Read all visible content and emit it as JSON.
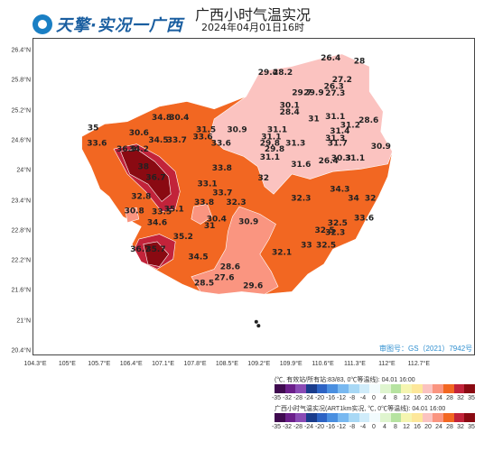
{
  "header": {
    "logo_text": "天擎·实况一广西",
    "title": "广西小时气温实况",
    "subtitle": "2024年04月01日16时"
  },
  "map": {
    "approval_number": "审图号：GS（2021）7942号",
    "lat_labels": [
      "26.4°N",
      "25.8°N",
      "25.2°N",
      "24.6°N",
      "24°N",
      "23.4°N",
      "22.8°N",
      "22.2°N",
      "21.6°N",
      "21°N",
      "20.4°N"
    ],
    "lon_labels": [
      "104.3°E",
      "105°E",
      "105.7°E",
      "106.4°E",
      "107.1°E",
      "107.8°E",
      "108.5°E",
      "109.2°E",
      "109.9°E",
      "110.6°E",
      "111.3°E",
      "112°E",
      "112.7°E"
    ],
    "colors": {
      "extreme_hot": "#8a0a12",
      "very_hot": "#c2233a",
      "hot": "#f26722",
      "warm": "#fa9580",
      "mild": "#fbc3c0",
      "border": "#ffffff",
      "water_marker": "#222222"
    },
    "station_values": [
      {
        "value": "35",
        "lon": 105.55,
        "lat": 24.82,
        "zone": "hot"
      },
      {
        "value": "33.6",
        "lon": 105.63,
        "lat": 24.52,
        "zone": "hot"
      },
      {
        "value": "30.6",
        "lon": 106.55,
        "lat": 24.72,
        "zone": "hot"
      },
      {
        "value": "34.8",
        "lon": 107.05,
        "lat": 25.03,
        "zone": "hot"
      },
      {
        "value": "30.4",
        "lon": 107.43,
        "lat": 25.03,
        "zone": "hot"
      },
      {
        "value": "34.5",
        "lon": 106.98,
        "lat": 24.58,
        "zone": "hot"
      },
      {
        "value": "33.7",
        "lon": 107.38,
        "lat": 24.58,
        "zone": "hot"
      },
      {
        "value": "36.9",
        "lon": 106.28,
        "lat": 24.4,
        "zone": "extreme_hot"
      },
      {
        "value": "34.2",
        "lon": 106.55,
        "lat": 24.4,
        "zone": "hot"
      },
      {
        "value": "38",
        "lon": 106.65,
        "lat": 24.05,
        "zone": "extreme_hot"
      },
      {
        "value": "36.7",
        "lon": 106.92,
        "lat": 23.83,
        "zone": "extreme_hot"
      },
      {
        "value": "32.8",
        "lon": 106.6,
        "lat": 23.45,
        "zone": "hot"
      },
      {
        "value": "30.8",
        "lon": 106.45,
        "lat": 23.17,
        "zone": "hot"
      },
      {
        "value": "33.5",
        "lon": 107.05,
        "lat": 23.15,
        "zone": "hot"
      },
      {
        "value": "35.1",
        "lon": 107.32,
        "lat": 23.2,
        "zone": "very_hot"
      },
      {
        "value": "34.6",
        "lon": 106.95,
        "lat": 22.93,
        "zone": "hot"
      },
      {
        "value": "36.7",
        "lon": 106.58,
        "lat": 22.4,
        "zone": "extreme_hot"
      },
      {
        "value": "35.7",
        "lon": 106.92,
        "lat": 22.4,
        "zone": "extreme_hot"
      },
      {
        "value": "35.2",
        "lon": 107.52,
        "lat": 22.65,
        "zone": "very_hot"
      },
      {
        "value": "34.5",
        "lon": 107.85,
        "lat": 22.25,
        "zone": "hot"
      },
      {
        "value": "31.5",
        "lon": 108.02,
        "lat": 24.79,
        "zone": "warm"
      },
      {
        "value": "33.6",
        "lon": 107.95,
        "lat": 24.64,
        "zone": "warm"
      },
      {
        "value": "33.6",
        "lon": 108.35,
        "lat": 24.52,
        "zone": "warm"
      },
      {
        "value": "30.9",
        "lon": 108.7,
        "lat": 24.79,
        "zone": "warm"
      },
      {
        "value": "33.8",
        "lon": 108.37,
        "lat": 24.02,
        "zone": "hot"
      },
      {
        "value": "33.1",
        "lon": 108.05,
        "lat": 23.71,
        "zone": "hot"
      },
      {
        "value": "33.7",
        "lon": 108.38,
        "lat": 23.53,
        "zone": "hot"
      },
      {
        "value": "33.8",
        "lon": 107.98,
        "lat": 23.34,
        "zone": "hot"
      },
      {
        "value": "32.3",
        "lon": 108.68,
        "lat": 23.34,
        "zone": "hot"
      },
      {
        "value": "31",
        "lon": 108.1,
        "lat": 22.87,
        "zone": "hot"
      },
      {
        "value": "30.4",
        "lon": 108.25,
        "lat": 23.0,
        "zone": "hot"
      },
      {
        "value": "30.9",
        "lon": 108.95,
        "lat": 22.95,
        "zone": "warm"
      },
      {
        "value": "28.6",
        "lon": 108.55,
        "lat": 22.05,
        "zone": "warm"
      },
      {
        "value": "28.5",
        "lon": 107.98,
        "lat": 21.72,
        "zone": "warm"
      },
      {
        "value": "27.6",
        "lon": 108.42,
        "lat": 21.83,
        "zone": "warm"
      },
      {
        "value": "29.6",
        "lon": 109.05,
        "lat": 21.67,
        "zone": "warm"
      },
      {
        "value": "32.1",
        "lon": 109.68,
        "lat": 22.34,
        "zone": "hot"
      },
      {
        "value": "32",
        "lon": 109.28,
        "lat": 23.82,
        "zone": "mild"
      },
      {
        "value": "29.4",
        "lon": 109.38,
        "lat": 25.93,
        "zone": "mild"
      },
      {
        "value": "28.2",
        "lon": 109.7,
        "lat": 25.93,
        "zone": "mild"
      },
      {
        "value": "29.7",
        "lon": 110.12,
        "lat": 25.53,
        "zone": "mild"
      },
      {
        "value": "29.9",
        "lon": 110.38,
        "lat": 25.53,
        "zone": "mild"
      },
      {
        "value": "26.4",
        "lon": 110.75,
        "lat": 26.22,
        "zone": "mild"
      },
      {
        "value": "28",
        "lon": 111.38,
        "lat": 26.16,
        "zone": "warm"
      },
      {
        "value": "27.2",
        "lon": 111.0,
        "lat": 25.79,
        "zone": "mild"
      },
      {
        "value": "26.3",
        "lon": 110.82,
        "lat": 25.65,
        "zone": "mild"
      },
      {
        "value": "27.3",
        "lon": 110.85,
        "lat": 25.52,
        "zone": "mild"
      },
      {
        "value": "30.1",
        "lon": 109.85,
        "lat": 25.27,
        "zone": "mild"
      },
      {
        "value": "28.4",
        "lon": 109.85,
        "lat": 25.14,
        "zone": "mild"
      },
      {
        "value": "31",
        "lon": 110.38,
        "lat": 25.0,
        "zone": "mild"
      },
      {
        "value": "31.1",
        "lon": 110.85,
        "lat": 25.05,
        "zone": "mild"
      },
      {
        "value": "31.2",
        "lon": 111.18,
        "lat": 24.88,
        "zone": "mild"
      },
      {
        "value": "28.6",
        "lon": 111.58,
        "lat": 24.98,
        "zone": "mild"
      },
      {
        "value": "31.1",
        "lon": 109.58,
        "lat": 24.79,
        "zone": "mild"
      },
      {
        "value": "31.3",
        "lon": 110.85,
        "lat": 24.62,
        "zone": "mild"
      },
      {
        "value": "31.4",
        "lon": 110.95,
        "lat": 24.76,
        "zone": "mild"
      },
      {
        "value": "31.1",
        "lon": 109.45,
        "lat": 24.64,
        "zone": "mild"
      },
      {
        "value": "29.8",
        "lon": 109.42,
        "lat": 24.52,
        "zone": "mild"
      },
      {
        "value": "31.3",
        "lon": 109.98,
        "lat": 24.52,
        "zone": "mild"
      },
      {
        "value": "31.7",
        "lon": 110.9,
        "lat": 24.52,
        "zone": "mild"
      },
      {
        "value": "29.8",
        "lon": 109.52,
        "lat": 24.4,
        "zone": "mild"
      },
      {
        "value": "31.1",
        "lon": 109.42,
        "lat": 24.24,
        "zone": "mild"
      },
      {
        "value": "30.3",
        "lon": 110.98,
        "lat": 24.22,
        "zone": "mild"
      },
      {
        "value": "31.1",
        "lon": 111.28,
        "lat": 24.22,
        "zone": "mild"
      },
      {
        "value": "26.4",
        "lon": 110.7,
        "lat": 24.17,
        "zone": "mild"
      },
      {
        "value": "30.9",
        "lon": 111.85,
        "lat": 24.45,
        "zone": "mild"
      },
      {
        "value": "31.6",
        "lon": 110.1,
        "lat": 24.09,
        "zone": "mild"
      },
      {
        "value": "34.3",
        "lon": 110.95,
        "lat": 23.6,
        "zone": "hot"
      },
      {
        "value": "32.3",
        "lon": 110.1,
        "lat": 23.42,
        "zone": "hot"
      },
      {
        "value": "34",
        "lon": 111.25,
        "lat": 23.42,
        "zone": "hot"
      },
      {
        "value": "32",
        "lon": 111.62,
        "lat": 23.42,
        "zone": "hot"
      },
      {
        "value": "33.6",
        "lon": 111.48,
        "lat": 23.02,
        "zone": "hot"
      },
      {
        "value": "32.5",
        "lon": 110.9,
        "lat": 22.92,
        "zone": "hot"
      },
      {
        "value": "32.5",
        "lon": 110.62,
        "lat": 22.78,
        "zone": "hot"
      },
      {
        "value": "32.3",
        "lon": 110.85,
        "lat": 22.73,
        "zone": "hot"
      },
      {
        "value": "33",
        "lon": 110.22,
        "lat": 22.48,
        "zone": "hot"
      },
      {
        "value": "32.5",
        "lon": 110.65,
        "lat": 22.48,
        "zone": "hot"
      }
    ],
    "water_features": [
      {
        "lon": 109.12,
        "lat": 21.0
      },
      {
        "lon": 109.17,
        "lat": 20.92
      }
    ]
  },
  "legend": {
    "station_note": "(℃, 有效站/所有站:83/83, 0℃等温线): 04.01 16:00",
    "grid_note": "广西小时气温实况(ART1km实况, ℃, 0℃等温线): 04.01 16:00",
    "ticks": [
      "-35",
      "-32",
      "-28",
      "-24",
      "-20",
      "-16",
      "-12",
      "-8",
      "-4",
      "0",
      "4",
      "8",
      "12",
      "16",
      "20",
      "24",
      "28",
      "32",
      "35"
    ],
    "colors": [
      "#3f0a4f",
      "#6b1f8a",
      "#8a4bb5",
      "#1a3c8c",
      "#2d63c4",
      "#4a8fe0",
      "#78b8f0",
      "#a8d8f5",
      "#d0ecfa",
      "#f2fbfd",
      "#dff5cf",
      "#b6e3a0",
      "#f5f5b0",
      "#fde79a",
      "#fbc3c0",
      "#fa9580",
      "#f26722",
      "#c2233a",
      "#8a0a12"
    ]
  }
}
